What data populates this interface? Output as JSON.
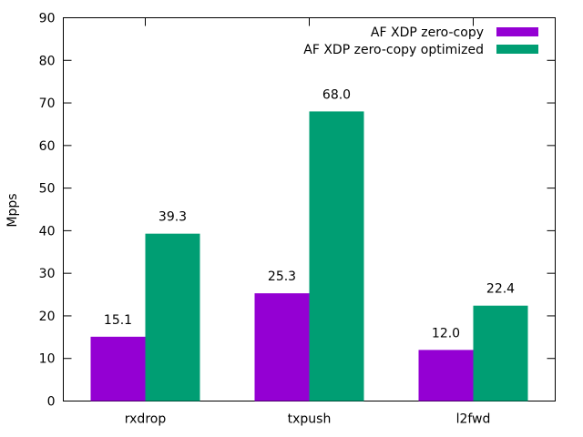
{
  "chart_data": {
    "type": "bar",
    "title": "",
    "xlabel": "",
    "ylabel": "Mpps",
    "ylim": [
      0,
      90
    ],
    "yticks": [
      0,
      10,
      20,
      30,
      40,
      50,
      60,
      70,
      80,
      90
    ],
    "categories": [
      "rxdrop",
      "txpush",
      "l2fwd"
    ],
    "series": [
      {
        "name": "AF XDP zero-copy",
        "values": [
          15.1,
          25.3,
          12.0
        ],
        "color": "#9400d3"
      },
      {
        "name": "AF XDP zero-copy optimized",
        "values": [
          39.3,
          68.0,
          22.4
        ],
        "color": "#009e73"
      }
    ],
    "data_labels": [
      [
        "15.1",
        "25.3",
        "12.0"
      ],
      [
        "39.3",
        "68.0",
        "22.4"
      ]
    ],
    "grid": false,
    "legend_position": "top-right"
  }
}
